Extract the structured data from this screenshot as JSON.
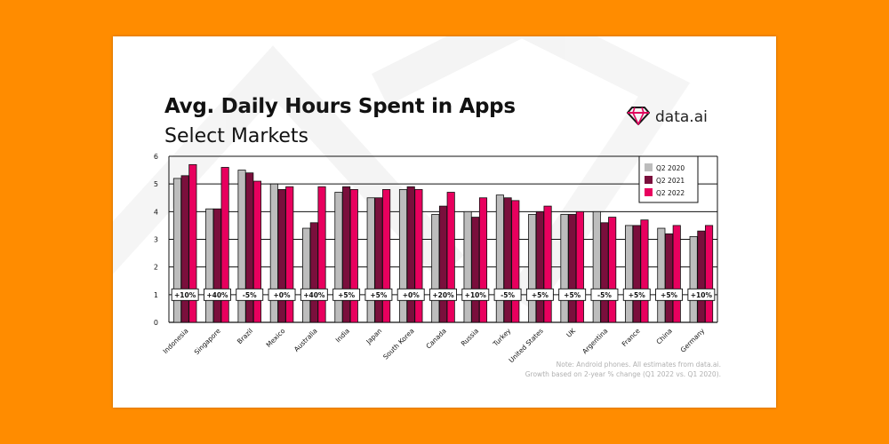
{
  "logo": {
    "text": "data.ai",
    "icon": "diamond-icon"
  },
  "colors": {
    "background": "#FF8C00",
    "q2_2020": "#BDBDBD",
    "q2_2021": "#7A0F3C",
    "q2_2022": "#E8005E",
    "logo_accent": "#E8005E"
  },
  "note": {
    "line1": "Note: Android phones. All estimates from data.ai.",
    "line2": "Growth based on 2-year % change (Q1 2022 vs. Q1 2020)."
  },
  "chart_data": {
    "type": "bar",
    "title": "Avg. Daily Hours Spent in Apps",
    "subtitle": "Select Markets",
    "xlabel": "",
    "ylabel": "",
    "ylim": [
      0,
      6
    ],
    "yticks": [
      0,
      1,
      2,
      3,
      4,
      5,
      6
    ],
    "grid": true,
    "legend": "top-right",
    "categories": [
      "Indonesia",
      "Singapore",
      "Brazil",
      "Mexico",
      "Australia",
      "India",
      "Japan",
      "South Korea",
      "Canada",
      "Russia",
      "Turkey",
      "United States",
      "UK",
      "Argentina",
      "France",
      "China",
      "Germany"
    ],
    "series": [
      {
        "name": "Q2 2020",
        "values": [
          5.2,
          4.1,
          5.5,
          5.0,
          3.4,
          4.7,
          4.5,
          4.8,
          3.9,
          4.0,
          4.6,
          3.9,
          3.9,
          4.0,
          3.5,
          3.4,
          3.1
        ]
      },
      {
        "name": "Q2 2021",
        "values": [
          5.3,
          4.1,
          5.4,
          4.8,
          3.6,
          4.9,
          4.5,
          4.9,
          4.2,
          3.8,
          4.5,
          4.0,
          3.9,
          3.6,
          3.5,
          3.2,
          3.3
        ]
      },
      {
        "name": "Q2 2022",
        "values": [
          5.7,
          5.6,
          5.1,
          4.9,
          4.9,
          4.8,
          4.8,
          4.8,
          4.7,
          4.5,
          4.4,
          4.2,
          4.0,
          3.8,
          3.7,
          3.5,
          3.5
        ]
      }
    ],
    "growth_labels": [
      "+10%",
      "+40%",
      "-5%",
      "+0%",
      "+40%",
      "+5%",
      "+5%",
      "+0%",
      "+20%",
      "+10%",
      "-5%",
      "+5%",
      "+5%",
      "-5%",
      "+5%",
      "+5%",
      "+10%"
    ]
  }
}
